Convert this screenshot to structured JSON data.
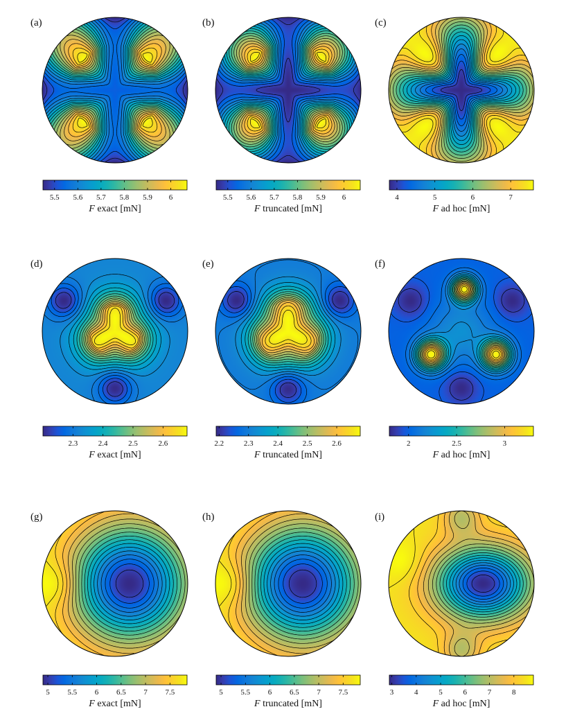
{
  "chart_data": [
    {
      "type": "contour",
      "panel": "(a)",
      "pattern": "exact-4lobe",
      "colorbar_label_var": "F",
      "colorbar_label_rest": " exact [mN]",
      "clim": [
        5.45,
        6.07
      ],
      "ticks": [
        5.5,
        5.6,
        5.7,
        5.8,
        5.9,
        6
      ],
      "tick_labels": [
        "5.5",
        "5.6",
        "5.7",
        "5.8",
        "5.9",
        "6"
      ]
    },
    {
      "type": "contour",
      "panel": "(b)",
      "pattern": "truncated-4lobe",
      "colorbar_label_var": "F",
      "colorbar_label_rest": " truncated [mN]",
      "clim": [
        5.45,
        6.07
      ],
      "ticks": [
        5.5,
        5.6,
        5.7,
        5.8,
        5.9,
        6
      ],
      "tick_labels": [
        "5.5",
        "5.6",
        "5.7",
        "5.8",
        "5.9",
        "6"
      ]
    },
    {
      "type": "contour",
      "panel": "(c)",
      "pattern": "adhoc-4lobe",
      "colorbar_label_var": "F",
      "colorbar_label_rest": " ad hoc [mN]",
      "clim": [
        3.8,
        7.6
      ],
      "ticks": [
        4,
        5,
        6,
        7
      ],
      "tick_labels": [
        "4",
        "5",
        "6",
        "7"
      ]
    },
    {
      "type": "contour",
      "panel": "(d)",
      "pattern": "exact-3lobe",
      "colorbar_label_var": "F",
      "colorbar_label_rest": " exact [mN]",
      "clim": [
        2.2,
        2.68
      ],
      "ticks": [
        2.3,
        2.4,
        2.5,
        2.6
      ],
      "tick_labels": [
        "2.3",
        "2.4",
        "2.5",
        "2.6"
      ]
    },
    {
      "type": "contour",
      "panel": "(e)",
      "pattern": "truncated-3lobe",
      "colorbar_label_var": "F",
      "colorbar_label_rest": " truncated [mN]",
      "clim": [
        2.19,
        2.68
      ],
      "ticks": [
        2.2,
        2.3,
        2.4,
        2.5,
        2.6
      ],
      "tick_labels": [
        "2.2",
        "2.3",
        "2.4",
        "2.5",
        "2.6"
      ]
    },
    {
      "type": "contour",
      "panel": "(f)",
      "pattern": "adhoc-3lobe",
      "colorbar_label_var": "F",
      "colorbar_label_rest": " ad hoc [mN]",
      "clim": [
        1.8,
        3.3
      ],
      "ticks": [
        2,
        2.5,
        3
      ],
      "tick_labels": [
        "2",
        "2.5",
        "3"
      ]
    },
    {
      "type": "contour",
      "panel": "(g)",
      "pattern": "exact-offset",
      "colorbar_label_var": "F",
      "colorbar_label_rest": " exact [mN]",
      "clim": [
        4.9,
        7.85
      ],
      "ticks": [
        5,
        5.5,
        6,
        6.5,
        7,
        7.5
      ],
      "tick_labels": [
        "5",
        "5.5",
        "6",
        "6.5",
        "7",
        "7.5"
      ]
    },
    {
      "type": "contour",
      "panel": "(h)",
      "pattern": "truncated-offset",
      "colorbar_label_var": "F",
      "colorbar_label_rest": " truncated [mN]",
      "clim": [
        4.9,
        7.85
      ],
      "ticks": [
        5,
        5.5,
        6,
        6.5,
        7,
        7.5
      ],
      "tick_labels": [
        "5",
        "5.5",
        "6",
        "6.5",
        "7",
        "7.5"
      ]
    },
    {
      "type": "contour",
      "panel": "(i)",
      "pattern": "adhoc-offset",
      "colorbar_label_var": "F",
      "colorbar_label_rest": " ad hoc [mN]",
      "clim": [
        2.9,
        8.8
      ],
      "ticks": [
        3,
        4,
        5,
        6,
        7,
        8
      ],
      "tick_labels": [
        "3",
        "4",
        "5",
        "6",
        "7",
        "8"
      ]
    }
  ],
  "colors": {
    "colormap": "parula",
    "contour_line": "#000000",
    "outline": "#000000",
    "background": "#ffffff"
  }
}
